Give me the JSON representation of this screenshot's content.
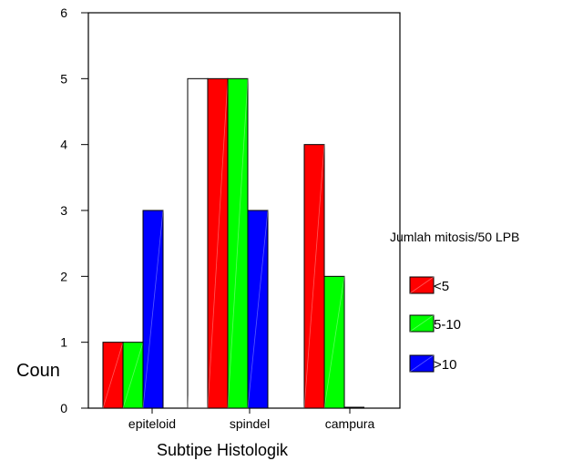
{
  "chart_data": {
    "type": "bar",
    "xlabel": "Subtipe Histologik",
    "ylabel": "Coun",
    "ylim": [
      0,
      6
    ],
    "yticks": [
      "0",
      "1",
      "2",
      "3",
      "4",
      "5",
      "6"
    ],
    "categories": [
      "epiteloid",
      "spindel",
      "campura"
    ],
    "legend": {
      "title": "Jumlah mitosis/50 LPB",
      "placement": "right"
    },
    "unlabeled_bar": {
      "category": "spindel",
      "value": 5,
      "color": "#ffffff"
    },
    "series": [
      {
        "name": "<5",
        "color": "#ff0000",
        "values": [
          1,
          5,
          4
        ]
      },
      {
        "name": "5-10",
        "color": "#00ff00",
        "values": [
          1,
          5,
          2
        ]
      },
      {
        "name": ">10",
        "color": "#0000ff",
        "values": [
          3,
          3,
          0
        ]
      }
    ]
  }
}
